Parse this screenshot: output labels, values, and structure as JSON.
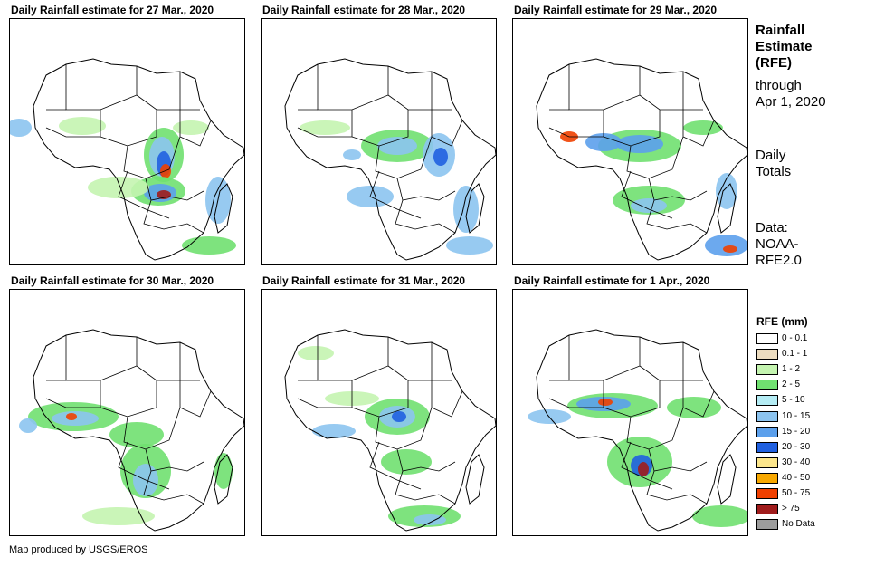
{
  "panels": [
    {
      "title": "Daily Rainfall estimate for 27 Mar., 2020"
    },
    {
      "title": "Daily Rainfall estimate for 28 Mar., 2020"
    },
    {
      "title": "Daily Rainfall estimate for 29 Mar., 2020"
    },
    {
      "title": "Daily Rainfall estimate for 30 Mar., 2020"
    },
    {
      "title": "Daily Rainfall estimate for 31 Mar., 2020"
    },
    {
      "title": "Daily Rainfall estimate for 1 Apr., 2020"
    }
  ],
  "side": {
    "heading_lines": [
      "Rainfall",
      "Estimate",
      "(RFE)"
    ],
    "through_lines": [
      "through",
      "Apr 1, 2020"
    ],
    "totals_lines": [
      "Daily",
      "Totals"
    ],
    "data_lines": [
      "Data:",
      "NOAA-",
      "RFE2.0"
    ]
  },
  "legend": {
    "title": "RFE (mm)",
    "items": [
      {
        "label": "0 - 0.1",
        "color": "#ffffff"
      },
      {
        "label": "0.1 - 1",
        "color": "#ecdcc0"
      },
      {
        "label": "1 - 2",
        "color": "#c4f4b0"
      },
      {
        "label": "2 - 5",
        "color": "#70e070"
      },
      {
        "label": "5 - 10",
        "color": "#b4ecf4"
      },
      {
        "label": "10 - 15",
        "color": "#8cc4f0"
      },
      {
        "label": "15 - 20",
        "color": "#5ca0ec"
      },
      {
        "label": "20 - 30",
        "color": "#2060e0"
      },
      {
        "label": "30 - 40",
        "color": "#fce68c"
      },
      {
        "label": "40 - 50",
        "color": "#f8a800"
      },
      {
        "label": "50 - 75",
        "color": "#f04000"
      },
      {
        "label": "> 75",
        "color": "#a01c1c"
      },
      {
        "label": "No Data",
        "color": "#9c9c9c"
      }
    ]
  },
  "footer": "Map produced by USGS/EROS"
}
